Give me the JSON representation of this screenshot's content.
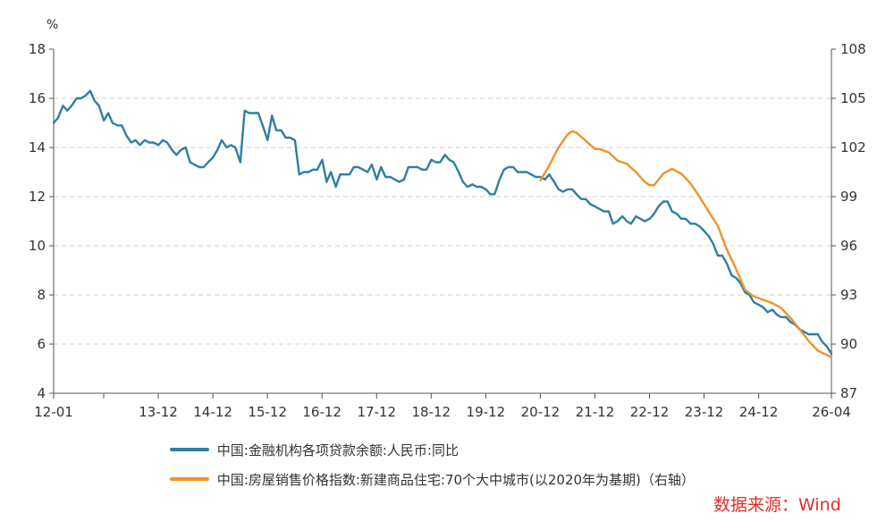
{
  "chart_data": {
    "type": "line",
    "title": "",
    "left_axis": {
      "unit": "%",
      "ylim": [
        4,
        18
      ],
      "ticks": [
        "4",
        "6",
        "8",
        "10",
        "12",
        "14",
        "16",
        "18"
      ]
    },
    "right_axis": {
      "ylim": [
        87,
        108
      ],
      "ticks": [
        "87",
        "90",
        "93",
        "96",
        "99",
        "102",
        "105",
        "108"
      ]
    },
    "x_axis": {
      "range": [
        2012.0,
        2026.25
      ],
      "ticks": [
        {
          "label": "12-01",
          "x": 2012.0
        },
        {
          "label": "13-12",
          "x": 2013.917
        },
        {
          "label": "14-12",
          "x": 2014.917
        },
        {
          "label": "15-12",
          "x": 2015.917
        },
        {
          "label": "16-12",
          "x": 2016.917
        },
        {
          "label": "17-12",
          "x": 2017.917
        },
        {
          "label": "18-12",
          "x": 2018.917
        },
        {
          "label": "19-12",
          "x": 2019.917
        },
        {
          "label": "20-12",
          "x": 2020.917
        },
        {
          "label": "21-12",
          "x": 2021.917
        },
        {
          "label": "22-12",
          "x": 2022.917
        },
        {
          "label": "23-12",
          "x": 2023.917
        },
        {
          "label": "24-12",
          "x": 2024.917
        },
        {
          "label": "26-04",
          "x": 2026.25
        }
      ],
      "extra_tick_positions": [
        2012.917
      ]
    },
    "grid": true,
    "series": [
      {
        "name": "中国:金融机构各项贷款余额:人民币:同比",
        "axis": "left",
        "color": "#2e7fa0",
        "points": [
          [
            2012.0,
            15.0
          ],
          [
            2012.08,
            15.2
          ],
          [
            2012.17,
            15.7
          ],
          [
            2012.25,
            15.5
          ],
          [
            2012.33,
            15.7
          ],
          [
            2012.42,
            16.0
          ],
          [
            2012.5,
            16.0
          ],
          [
            2012.58,
            16.1
          ],
          [
            2012.67,
            16.3
          ],
          [
            2012.75,
            15.9
          ],
          [
            2012.83,
            15.7
          ],
          [
            2012.92,
            15.1
          ],
          [
            2013.0,
            15.4
          ],
          [
            2013.08,
            15.0
          ],
          [
            2013.17,
            14.9
          ],
          [
            2013.25,
            14.9
          ],
          [
            2013.33,
            14.5
          ],
          [
            2013.42,
            14.2
          ],
          [
            2013.5,
            14.3
          ],
          [
            2013.58,
            14.1
          ],
          [
            2013.67,
            14.3
          ],
          [
            2013.75,
            14.2
          ],
          [
            2013.83,
            14.2
          ],
          [
            2013.92,
            14.1
          ],
          [
            2014.0,
            14.3
          ],
          [
            2014.08,
            14.2
          ],
          [
            2014.17,
            13.9
          ],
          [
            2014.25,
            13.7
          ],
          [
            2014.33,
            13.9
          ],
          [
            2014.42,
            14.0
          ],
          [
            2014.5,
            13.4
          ],
          [
            2014.58,
            13.3
          ],
          [
            2014.67,
            13.2
          ],
          [
            2014.75,
            13.2
          ],
          [
            2014.83,
            13.4
          ],
          [
            2014.92,
            13.6
          ],
          [
            2015.0,
            13.9
          ],
          [
            2015.08,
            14.3
          ],
          [
            2015.17,
            14.0
          ],
          [
            2015.25,
            14.1
          ],
          [
            2015.33,
            14.0
          ],
          [
            2015.42,
            13.4
          ],
          [
            2015.5,
            15.5
          ],
          [
            2015.58,
            15.4
          ],
          [
            2015.67,
            15.4
          ],
          [
            2015.75,
            15.4
          ],
          [
            2015.83,
            14.9
          ],
          [
            2015.92,
            14.3
          ],
          [
            2016.0,
            15.3
          ],
          [
            2016.08,
            14.7
          ],
          [
            2016.17,
            14.7
          ],
          [
            2016.25,
            14.4
          ],
          [
            2016.33,
            14.4
          ],
          [
            2016.42,
            14.3
          ],
          [
            2016.5,
            12.9
          ],
          [
            2016.58,
            13.0
          ],
          [
            2016.67,
            13.0
          ],
          [
            2016.75,
            13.1
          ],
          [
            2016.83,
            13.1
          ],
          [
            2016.92,
            13.5
          ],
          [
            2017.0,
            12.6
          ],
          [
            2017.08,
            13.0
          ],
          [
            2017.17,
            12.4
          ],
          [
            2017.25,
            12.9
          ],
          [
            2017.33,
            12.9
          ],
          [
            2017.42,
            12.9
          ],
          [
            2017.5,
            13.2
          ],
          [
            2017.58,
            13.2
          ],
          [
            2017.67,
            13.1
          ],
          [
            2017.75,
            13.0
          ],
          [
            2017.83,
            13.3
          ],
          [
            2017.92,
            12.7
          ],
          [
            2018.0,
            13.2
          ],
          [
            2018.08,
            12.8
          ],
          [
            2018.17,
            12.8
          ],
          [
            2018.25,
            12.7
          ],
          [
            2018.33,
            12.6
          ],
          [
            2018.42,
            12.7
          ],
          [
            2018.5,
            13.2
          ],
          [
            2018.58,
            13.2
          ],
          [
            2018.67,
            13.2
          ],
          [
            2018.75,
            13.1
          ],
          [
            2018.83,
            13.1
          ],
          [
            2018.92,
            13.5
          ],
          [
            2019.0,
            13.4
          ],
          [
            2019.08,
            13.4
          ],
          [
            2019.17,
            13.7
          ],
          [
            2019.25,
            13.5
          ],
          [
            2019.33,
            13.4
          ],
          [
            2019.42,
            13.0
          ],
          [
            2019.5,
            12.6
          ],
          [
            2019.58,
            12.4
          ],
          [
            2019.67,
            12.5
          ],
          [
            2019.75,
            12.4
          ],
          [
            2019.83,
            12.4
          ],
          [
            2019.92,
            12.3
          ],
          [
            2020.0,
            12.1
          ],
          [
            2020.08,
            12.1
          ],
          [
            2020.17,
            12.7
          ],
          [
            2020.25,
            13.1
          ],
          [
            2020.33,
            13.2
          ],
          [
            2020.42,
            13.2
          ],
          [
            2020.5,
            13.0
          ],
          [
            2020.58,
            13.0
          ],
          [
            2020.67,
            13.0
          ],
          [
            2020.75,
            12.9
          ],
          [
            2020.83,
            12.8
          ],
          [
            2020.92,
            12.8
          ],
          [
            2021.0,
            12.7
          ],
          [
            2021.08,
            12.9
          ],
          [
            2021.17,
            12.6
          ],
          [
            2021.25,
            12.3
          ],
          [
            2021.33,
            12.2
          ],
          [
            2021.42,
            12.3
          ],
          [
            2021.5,
            12.3
          ],
          [
            2021.58,
            12.1
          ],
          [
            2021.67,
            11.9
          ],
          [
            2021.75,
            11.9
          ],
          [
            2021.83,
            11.7
          ],
          [
            2021.92,
            11.6
          ],
          [
            2022.0,
            11.5
          ],
          [
            2022.08,
            11.4
          ],
          [
            2022.17,
            11.4
          ],
          [
            2022.25,
            10.9
          ],
          [
            2022.33,
            11.0
          ],
          [
            2022.42,
            11.2
          ],
          [
            2022.5,
            11.0
          ],
          [
            2022.58,
            10.9
          ],
          [
            2022.67,
            11.2
          ],
          [
            2022.75,
            11.1
          ],
          [
            2022.83,
            11.0
          ],
          [
            2022.92,
            11.1
          ],
          [
            2023.0,
            11.3
          ],
          [
            2023.08,
            11.6
          ],
          [
            2023.17,
            11.8
          ],
          [
            2023.25,
            11.8
          ],
          [
            2023.33,
            11.4
          ],
          [
            2023.42,
            11.3
          ],
          [
            2023.5,
            11.1
          ],
          [
            2023.58,
            11.1
          ],
          [
            2023.67,
            10.9
          ],
          [
            2023.75,
            10.9
          ],
          [
            2023.83,
            10.8
          ],
          [
            2023.92,
            10.6
          ],
          [
            2024.0,
            10.4
          ],
          [
            2024.08,
            10.1
          ],
          [
            2024.17,
            9.6
          ],
          [
            2024.25,
            9.6
          ],
          [
            2024.33,
            9.3
          ],
          [
            2024.42,
            8.8
          ],
          [
            2024.5,
            8.7
          ],
          [
            2024.58,
            8.5
          ],
          [
            2024.67,
            8.1
          ],
          [
            2024.75,
            8.0
          ],
          [
            2024.83,
            7.7
          ],
          [
            2024.92,
            7.6
          ],
          [
            2025.0,
            7.5
          ],
          [
            2025.08,
            7.3
          ],
          [
            2025.17,
            7.4
          ],
          [
            2025.25,
            7.2
          ],
          [
            2025.33,
            7.1
          ],
          [
            2025.42,
            7.1
          ],
          [
            2025.5,
            6.9
          ],
          [
            2025.58,
            6.8
          ],
          [
            2025.67,
            6.6
          ],
          [
            2025.75,
            6.5
          ],
          [
            2025.83,
            6.4
          ],
          [
            2025.92,
            6.4
          ],
          [
            2026.0,
            6.4
          ],
          [
            2026.08,
            6.1
          ],
          [
            2026.17,
            5.9
          ],
          [
            2026.25,
            5.6
          ]
        ]
      },
      {
        "name": "中国:房屋销售价格指数:新建商品住宅:70个大中城市(以2020年为基期)（右轴）",
        "axis": "right",
        "color": "#f0922b",
        "points": [
          [
            2020.92,
            100.0
          ],
          [
            2021.08,
            100.9
          ],
          [
            2021.25,
            102.0
          ],
          [
            2021.42,
            102.8
          ],
          [
            2021.5,
            103.0
          ],
          [
            2021.58,
            102.9
          ],
          [
            2021.75,
            102.4
          ],
          [
            2021.92,
            101.9
          ],
          [
            2022.0,
            101.9
          ],
          [
            2022.17,
            101.7
          ],
          [
            2022.33,
            101.2
          ],
          [
            2022.5,
            101.0
          ],
          [
            2022.67,
            100.5
          ],
          [
            2022.83,
            99.9
          ],
          [
            2022.92,
            99.7
          ],
          [
            2023.0,
            99.7
          ],
          [
            2023.17,
            100.4
          ],
          [
            2023.33,
            100.7
          ],
          [
            2023.5,
            100.4
          ],
          [
            2023.67,
            99.8
          ],
          [
            2023.83,
            99.0
          ],
          [
            2024.0,
            98.1
          ],
          [
            2024.17,
            97.2
          ],
          [
            2024.33,
            95.8
          ],
          [
            2024.5,
            94.6
          ],
          [
            2024.67,
            93.3
          ],
          [
            2024.83,
            92.9
          ],
          [
            2025.0,
            92.7
          ],
          [
            2025.17,
            92.5
          ],
          [
            2025.33,
            92.2
          ],
          [
            2025.5,
            91.6
          ],
          [
            2025.67,
            90.9
          ],
          [
            2025.83,
            90.2
          ],
          [
            2026.0,
            89.6
          ],
          [
            2026.25,
            89.2
          ]
        ]
      }
    ]
  },
  "legend": [
    {
      "label": "中国:金融机构各项贷款余额:人民币:同比",
      "color": "#2e7fa0"
    },
    {
      "label": "中国:房屋销售价格指数:新建商品住宅:70个大中城市(以2020年为基期)（右轴）",
      "color": "#f0922b"
    }
  ],
  "source_note": "数据来源：Wind"
}
